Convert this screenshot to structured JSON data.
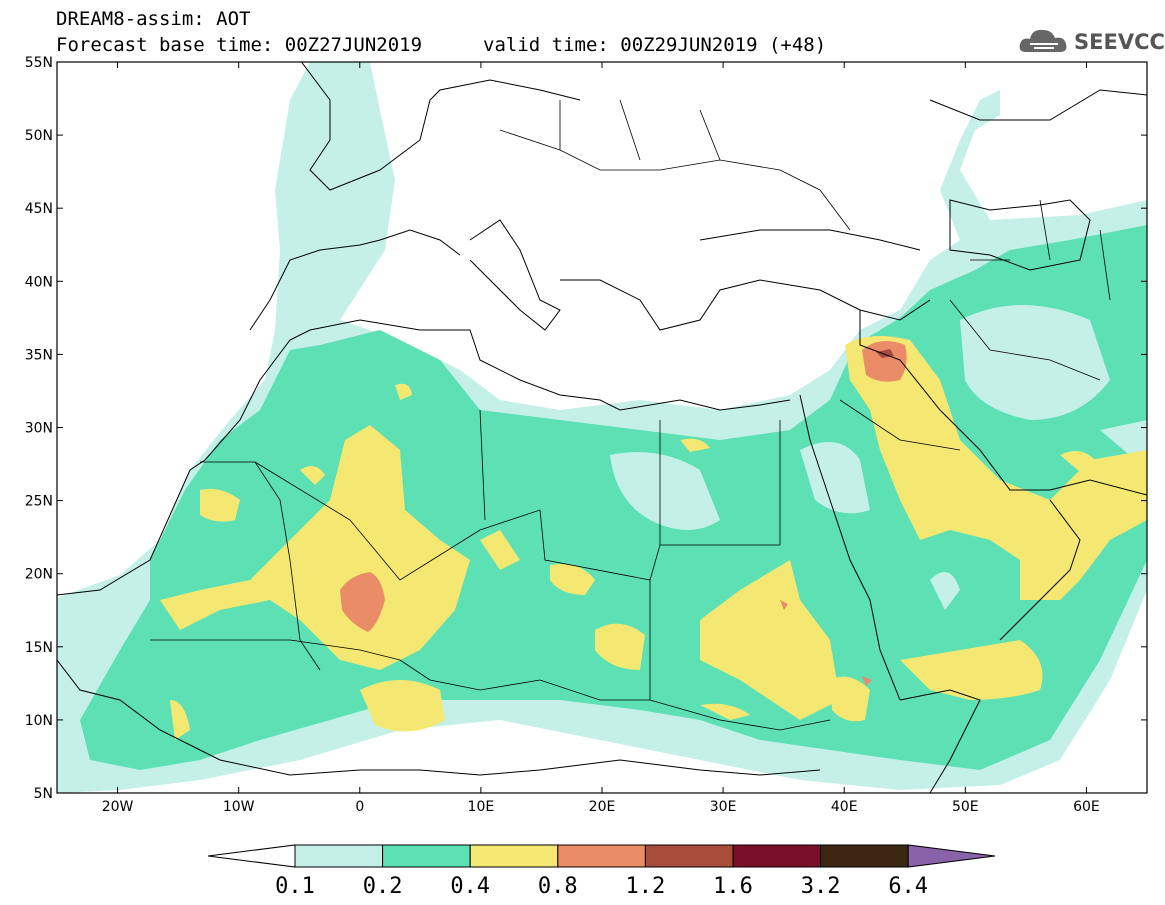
{
  "header": {
    "line1": "DREAM8-assim: AOT",
    "line2": "Forecast base time: 00Z27JUN2019",
    "line2_valid": "valid time: 00Z29JUN2019 (+48)"
  },
  "logo": {
    "text": "SEEVCCC",
    "icon": "cloud-icon"
  },
  "map": {
    "lon_range": [
      -25,
      65
    ],
    "lat_range": [
      5,
      55
    ],
    "lat_ticks": [
      "5N",
      "10N",
      "15N",
      "20N",
      "25N",
      "30N",
      "35N",
      "40N",
      "45N",
      "50N",
      "55N"
    ],
    "lon_ticks": [
      "20W",
      "10W",
      "0",
      "10E",
      "20E",
      "30E",
      "40E",
      "50E",
      "60E"
    ]
  },
  "colorbar": {
    "labels": [
      "0.1",
      "0.2",
      "0.4",
      "0.8",
      "1.2",
      "1.6",
      "3.2",
      "6.4"
    ],
    "colors": [
      "#ffffff",
      "#c4f0e8",
      "#5ce0b4",
      "#f4e873",
      "#ea8c67",
      "#a84c3c",
      "#7a0f2a",
      "#3b2712",
      "#8a62a8"
    ]
  }
}
